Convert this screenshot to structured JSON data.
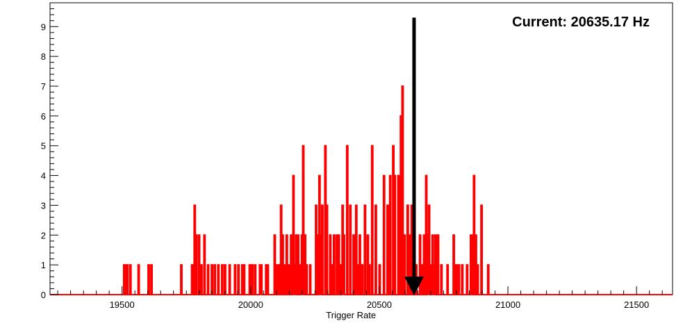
{
  "chart_data": {
    "type": "histogram",
    "title": "",
    "xlabel": "Trigger Rate",
    "ylabel": "",
    "xlim": [
      19220,
      21640
    ],
    "ylim": [
      0,
      9.8
    ],
    "grid": false,
    "legend": "none",
    "x_ticks": [
      19500,
      20000,
      20500,
      21000,
      21500
    ],
    "y_ticks": [
      0,
      1,
      2,
      3,
      4,
      5,
      6,
      7,
      8,
      9
    ],
    "line_color": "#ff0000",
    "bin_width": 5,
    "series": [
      {
        "bins": [
          [
            19506,
            1
          ],
          [
            19512,
            1
          ],
          [
            19518,
            1
          ],
          [
            19530,
            1
          ],
          [
            19562,
            1
          ],
          [
            19601,
            1
          ],
          [
            19612,
            1
          ],
          [
            19728,
            1
          ],
          [
            19770,
            1
          ],
          [
            19780,
            3
          ],
          [
            19786,
            2
          ],
          [
            19797,
            2
          ],
          [
            19806,
            1
          ],
          [
            19818,
            2
          ],
          [
            19832,
            1
          ],
          [
            19847,
            1
          ],
          [
            19858,
            1
          ],
          [
            19872,
            1
          ],
          [
            19887,
            1
          ],
          [
            19898,
            1
          ],
          [
            19916,
            1
          ],
          [
            19937,
            1
          ],
          [
            19950,
            1
          ],
          [
            19965,
            1
          ],
          [
            19972,
            1
          ],
          [
            19994,
            1
          ],
          [
            20004,
            1
          ],
          [
            20015,
            1
          ],
          [
            20034,
            1
          ],
          [
            20039,
            1
          ],
          [
            20058,
            1
          ],
          [
            20064,
            1
          ],
          [
            20091,
            2
          ],
          [
            20101,
            1
          ],
          [
            20109,
            1
          ],
          [
            20116,
            3
          ],
          [
            20122,
            2
          ],
          [
            20128,
            1
          ],
          [
            20138,
            2
          ],
          [
            20146,
            1
          ],
          [
            20155,
            2
          ],
          [
            20164,
            4
          ],
          [
            20169,
            1
          ],
          [
            20175,
            2
          ],
          [
            20182,
            2
          ],
          [
            20188,
            1
          ],
          [
            20197,
            2
          ],
          [
            20202,
            5
          ],
          [
            20209,
            2
          ],
          [
            20215,
            1
          ],
          [
            20229,
            1
          ],
          [
            20252,
            3
          ],
          [
            20258,
            2
          ],
          [
            20265,
            4
          ],
          [
            20270,
            2
          ],
          [
            20276,
            3
          ],
          [
            20288,
            5
          ],
          [
            20294,
            3
          ],
          [
            20307,
            2
          ],
          [
            20316,
            1
          ],
          [
            20322,
            2
          ],
          [
            20333,
            2
          ],
          [
            20340,
            2
          ],
          [
            20349,
            1
          ],
          [
            20355,
            3
          ],
          [
            20360,
            2
          ],
          [
            20373,
            5
          ],
          [
            20385,
            3
          ],
          [
            20398,
            2
          ],
          [
            20408,
            3
          ],
          [
            20416,
            1
          ],
          [
            20422,
            2
          ],
          [
            20431,
            1
          ],
          [
            20442,
            3
          ],
          [
            20453,
            2
          ],
          [
            20459,
            1
          ],
          [
            20470,
            5
          ],
          [
            20484,
            3
          ],
          [
            20499,
            1
          ],
          [
            20516,
            4
          ],
          [
            20530,
            3
          ],
          [
            20540,
            4
          ],
          [
            20552,
            5
          ],
          [
            20558,
            4
          ],
          [
            20572,
            4
          ],
          [
            20582,
            6
          ],
          [
            20588,
            7
          ],
          [
            20596,
            2
          ],
          [
            20608,
            3
          ],
          [
            20617,
            2
          ],
          [
            20624,
            3
          ],
          [
            20634,
            4
          ],
          [
            20641,
            1
          ],
          [
            20648,
            0
          ],
          [
            20656,
            2
          ],
          [
            20662,
            1
          ],
          [
            20672,
            2
          ],
          [
            20680,
            4
          ],
          [
            20686,
            2
          ],
          [
            20691,
            3
          ],
          [
            20697,
            1
          ],
          [
            20705,
            2
          ],
          [
            20710,
            1
          ],
          [
            20716,
            2
          ],
          [
            20726,
            2
          ],
          [
            20739,
            1
          ],
          [
            20763,
            1
          ],
          [
            20787,
            2
          ],
          [
            20797,
            1
          ],
          [
            20807,
            1
          ],
          [
            20820,
            1
          ],
          [
            20839,
            1
          ],
          [
            20854,
            2
          ],
          [
            20860,
            2
          ],
          [
            20866,
            4
          ],
          [
            20873,
            2
          ],
          [
            20880,
            1
          ],
          [
            20895,
            3
          ],
          [
            20921,
            1
          ]
        ]
      }
    ],
    "annotation": {
      "text": "Current: 20635.17 Hz",
      "arrow_x": 20635.17,
      "arrow_from_y": 9.3,
      "arrow_to_y": 0
    }
  }
}
